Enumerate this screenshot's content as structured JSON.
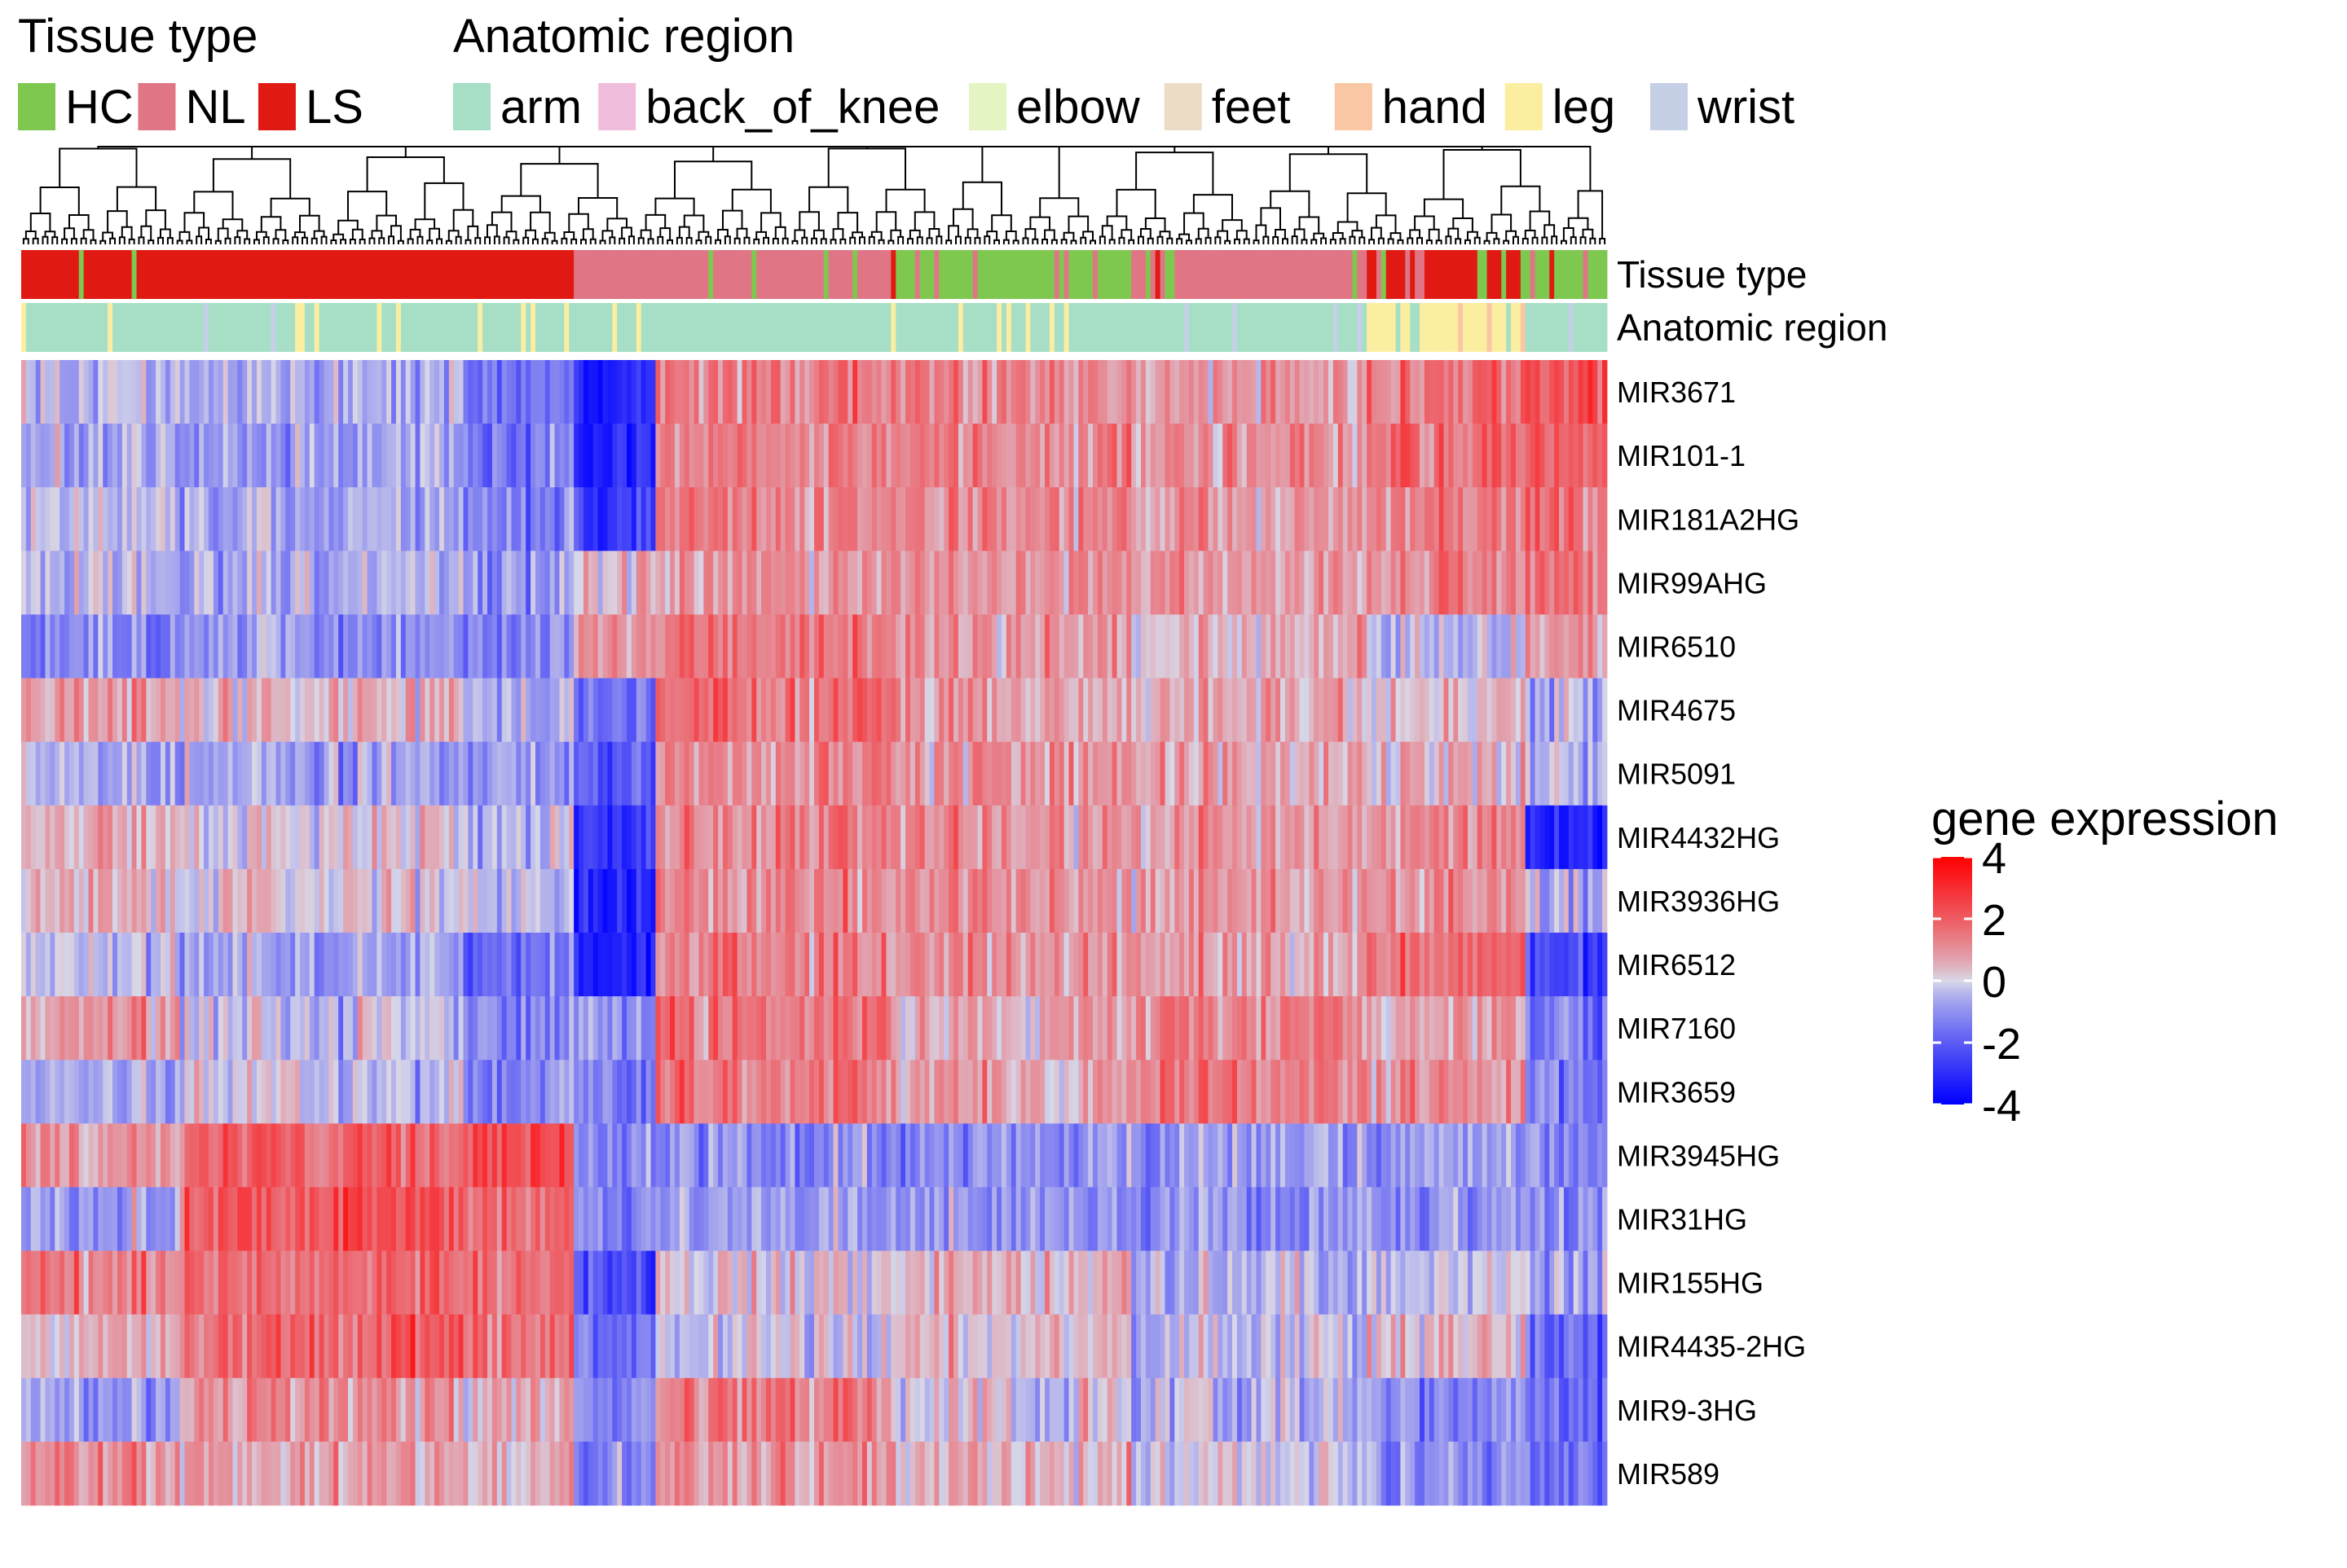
{
  "chart_data": {
    "type": "heatmap",
    "annotation_legends": [
      {
        "title": "Tissue type",
        "entries": [
          {
            "label": "HC",
            "color": "#7ec850"
          },
          {
            "label": "NL",
            "color": "#e07585"
          },
          {
            "label": "LS",
            "color": "#e01a13"
          }
        ]
      },
      {
        "title": "Anatomic region",
        "entries": [
          {
            "label": "arm",
            "color": "#a6dfc6"
          },
          {
            "label": "back_of_knee",
            "color": "#f0bddc"
          },
          {
            "label": "elbow",
            "color": "#e4f4c3"
          },
          {
            "label": "feet",
            "color": "#ebdcc6"
          },
          {
            "label": "hand",
            "color": "#f9c7a3"
          },
          {
            "label": "leg",
            "color": "#fbeea0"
          },
          {
            "label": "wrist",
            "color": "#c5cfe6"
          }
        ]
      }
    ],
    "annotation_tracks": [
      "Tissue type",
      "Anatomic region"
    ],
    "rows": [
      "MIR3671",
      "MIR101-1",
      "MIR181A2HG",
      "MIR99AHG",
      "MIR6510",
      "MIR4675",
      "MIR5091",
      "MIR4432HG",
      "MIR3936HG",
      "MIR6512",
      "MIR7160",
      "MIR3659",
      "MIR3945HG",
      "MIR31HG",
      "MIR155HG",
      "MIR4435-2HG",
      "MIR9-3HG",
      "MIR589"
    ],
    "column_clusters": [
      {
        "span": [
          0.0,
          0.1
        ],
        "tissue": [
          "LS",
          "NL",
          "LS",
          "HC",
          "LS"
        ],
        "region": [
          "arm",
          "leg",
          "arm"
        ],
        "means": [
          -0.3,
          -0.5,
          -0.2,
          -0.3,
          -1.2,
          0.8,
          -0.5,
          0.6,
          0.5,
          -0.3,
          0.9,
          -0.6,
          1.0,
          -0.7,
          1.4,
          0.5,
          -0.8,
          1.2
        ]
      },
      {
        "span": [
          0.1,
          0.28
        ],
        "tissue": [
          "LS"
        ],
        "region": [
          "arm",
          "wrist",
          "leg"
        ],
        "means": [
          -0.6,
          -0.8,
          -0.6,
          -0.6,
          -0.9,
          0.4,
          -0.8,
          0.2,
          0.1,
          -0.8,
          -0.3,
          -0.2,
          1.9,
          2.2,
          1.7,
          1.8,
          0.9,
          0.8
        ]
      },
      {
        "span": [
          0.28,
          0.35
        ],
        "tissue": [
          "LS"
        ],
        "region": [
          "arm",
          "leg"
        ],
        "means": [
          -1.6,
          -1.6,
          -1.4,
          -1.0,
          -1.3,
          -0.6,
          -0.8,
          -0.5,
          -0.4,
          -1.5,
          -1.2,
          -1.1,
          2.4,
          1.6,
          1.5,
          1.5,
          0.5,
          0.4
        ]
      },
      {
        "span": [
          0.35,
          0.4
        ],
        "tissue": [
          "NL",
          "HC"
        ],
        "region": [
          "arm",
          "leg"
        ],
        "means": [
          -3.2,
          -3.0,
          -2.9,
          0.4,
          0.9,
          -1.5,
          -2.0,
          -3.0,
          -3.1,
          -3.3,
          -1.2,
          -1.3,
          -1.2,
          -1.0,
          -2.3,
          -1.5,
          -1.3,
          -1.2
        ]
      },
      {
        "span": [
          0.4,
          0.55
        ],
        "tissue": [
          "NL",
          "HC",
          "NL"
        ],
        "region": [
          "arm"
        ],
        "means": [
          1.3,
          1.2,
          1.2,
          0.9,
          1.4,
          1.6,
          1.2,
          1.2,
          1.1,
          1.3,
          1.6,
          1.4,
          -1.0,
          -0.9,
          0.3,
          -0.1,
          1.3,
          0.9
        ]
      },
      {
        "span": [
          0.55,
          0.7
        ],
        "tissue": [
          "HC",
          "NL",
          "LS"
        ],
        "region": [
          "arm",
          "leg"
        ],
        "means": [
          1.2,
          1.3,
          1.2,
          1.1,
          1.0,
          0.9,
          1.1,
          1.1,
          1.0,
          1.1,
          0.7,
          0.8,
          -0.9,
          -0.9,
          0.6,
          0.4,
          0.2,
          0.6
        ]
      },
      {
        "span": [
          0.7,
          0.85
        ],
        "tissue": [
          "NL",
          "HC",
          "LS",
          "NL"
        ],
        "region": [
          "arm",
          "wrist"
        ],
        "means": [
          0.9,
          1.0,
          1.0,
          0.8,
          0.6,
          0.7,
          0.7,
          0.9,
          0.9,
          0.9,
          1.3,
          1.4,
          -0.9,
          -1.0,
          -0.4,
          -0.3,
          -0.4,
          -0.2
        ]
      },
      {
        "span": [
          0.85,
          0.95
        ],
        "tissue": [
          "LS",
          "NL",
          "HC"
        ],
        "region": [
          "leg",
          "arm",
          "hand"
        ],
        "means": [
          1.5,
          1.6,
          1.4,
          1.0,
          -0.4,
          0.3,
          0.4,
          1.1,
          1.1,
          1.6,
          0.8,
          1.0,
          -0.8,
          -1.0,
          -0.2,
          0.4,
          -1.0,
          -1.1
        ]
      },
      {
        "span": [
          0.95,
          1.0
        ],
        "tissue": [
          "HC",
          "NL",
          "LS"
        ],
        "region": [
          "arm",
          "wrist"
        ],
        "means": [
          2.1,
          2.0,
          1.8,
          1.7,
          1.0,
          -0.5,
          -0.6,
          -3.2,
          -0.5,
          -2.4,
          -1.3,
          -1.4,
          -1.2,
          -1.2,
          -0.6,
          -1.8,
          -1.6,
          -1.6
        ]
      }
    ],
    "column_count": 330,
    "color_scale": {
      "title": "gene expression",
      "domain": [
        -4,
        4
      ],
      "ticks": [
        4,
        2,
        0,
        -2,
        -4
      ],
      "colors": [
        "#0000ff",
        "#d8d8e8",
        "#ff0000"
      ]
    },
    "dendrogram": "columns"
  }
}
